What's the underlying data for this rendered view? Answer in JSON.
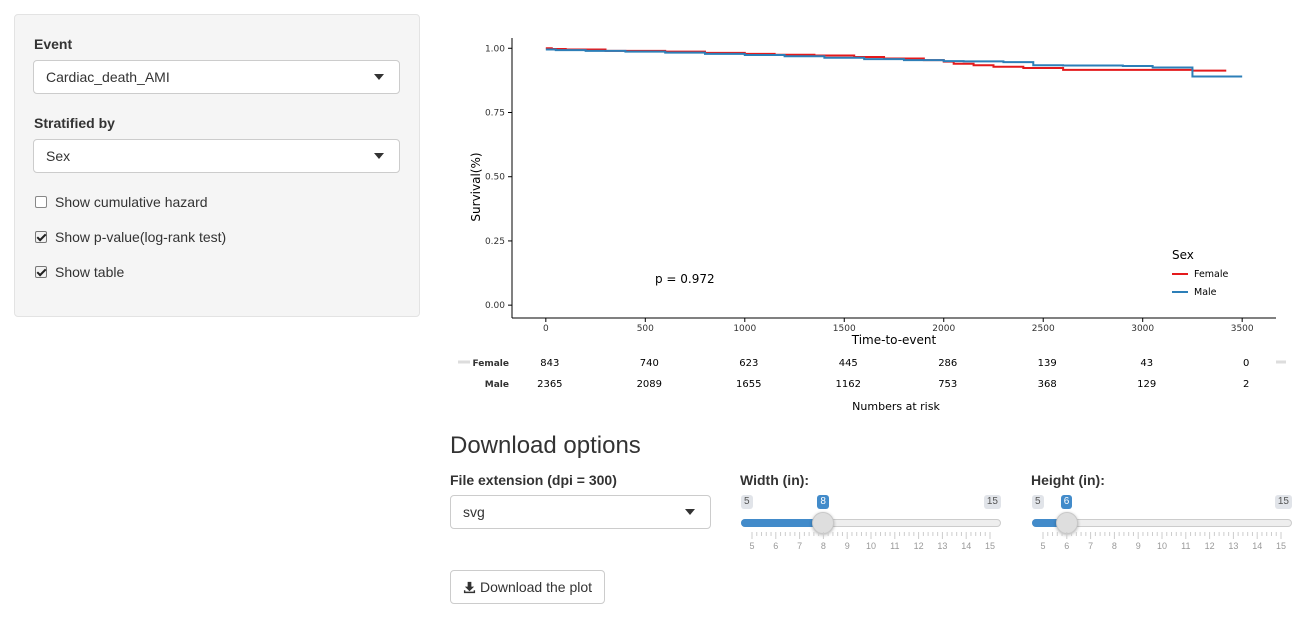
{
  "sidebar": {
    "event_label": "Event",
    "event_value": "Cardiac_death_AMI",
    "strat_label": "Stratified by",
    "strat_value": "Sex",
    "checkboxes": [
      {
        "label": "Show cumulative hazard",
        "checked": false
      },
      {
        "label": "Show p-value(log-rank test)",
        "checked": true
      },
      {
        "label": "Show table",
        "checked": true
      }
    ]
  },
  "chart_data": {
    "type": "line",
    "title": "",
    "xlabel": "Time-to-event",
    "ylabel": "Survival(%)",
    "xlim": [
      -170,
      3670
    ],
    "ylim": [
      -0.05,
      1.04
    ],
    "x_ticks": [
      0,
      500,
      1000,
      1500,
      2000,
      2500,
      3000,
      3500
    ],
    "y_ticks": [
      0.0,
      0.25,
      0.5,
      0.75,
      1.0
    ],
    "y_tick_labels": [
      "0.00",
      "0.25",
      "0.50",
      "0.75",
      "1.00"
    ],
    "grid": false,
    "legend": {
      "title": "Sex",
      "position": "right"
    },
    "pvalue_text": "p = 0.972",
    "series": [
      {
        "name": "Female",
        "color": "#e41a1c",
        "x": [
          0,
          30,
          100,
          300,
          600,
          800,
          1000,
          1150,
          1350,
          1550,
          1700,
          1900,
          2000,
          2050,
          2150,
          2250,
          2400,
          2600,
          3000,
          3250,
          3420
        ],
        "y": [
          1.0,
          0.997,
          0.995,
          0.99,
          0.987,
          0.982,
          0.978,
          0.975,
          0.972,
          0.966,
          0.96,
          0.954,
          0.948,
          0.94,
          0.934,
          0.928,
          0.923,
          0.916,
          0.916,
          0.913,
          0.913
        ]
      },
      {
        "name": "Male",
        "color": "#2c7fb8",
        "x": [
          0,
          50,
          200,
          400,
          600,
          800,
          1000,
          1200,
          1400,
          1600,
          1800,
          2000,
          2100,
          2300,
          2450,
          2600,
          2900,
          3050,
          3250,
          3500
        ],
        "y": [
          0.995,
          0.993,
          0.99,
          0.987,
          0.983,
          0.978,
          0.974,
          0.969,
          0.963,
          0.958,
          0.954,
          0.95,
          0.949,
          0.946,
          0.934,
          0.933,
          0.931,
          0.925,
          0.89,
          0.89
        ]
      }
    ],
    "risk_table": {
      "title": "Numbers at risk",
      "times": [
        0,
        500,
        1000,
        1500,
        2000,
        2500,
        3000,
        3500
      ],
      "rows": [
        {
          "name": "Female",
          "values": [
            843,
            740,
            623,
            445,
            286,
            139,
            43,
            0
          ]
        },
        {
          "name": "Male",
          "values": [
            2365,
            2089,
            1655,
            1162,
            753,
            368,
            129,
            2
          ]
        }
      ]
    }
  },
  "download": {
    "title": "Download options",
    "ext_label": "File extension (dpi = 300)",
    "ext_value": "svg",
    "button_label": "Download the plot",
    "width": {
      "label": "Width (in):",
      "min": 5,
      "max": 15,
      "value": 8,
      "min_label": "5",
      "max_label": "15",
      "value_label": "8"
    },
    "height": {
      "label": "Height (in):",
      "min": 5,
      "max": 15,
      "value": 6,
      "min_label": "5",
      "max_label": "15",
      "value_label": "6"
    },
    "grid_labels": [
      "5",
      "6",
      "7",
      "8",
      "9",
      "10",
      "11",
      "12",
      "13",
      "14",
      "15"
    ],
    "accent_color": "#428bca"
  }
}
